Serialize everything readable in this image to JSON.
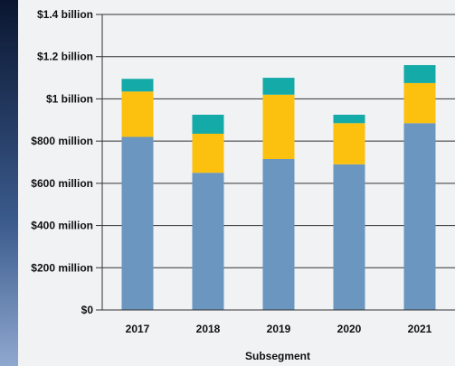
{
  "chart_data": {
    "type": "bar",
    "stacked": true,
    "categories": [
      "2017",
      "2018",
      "2019",
      "2020",
      "2021"
    ],
    "series": [
      {
        "color": "#6a96bf",
        "values": [
          820,
          650,
          715,
          690,
          885
        ]
      },
      {
        "color": "#fcc10f",
        "values": [
          215,
          185,
          305,
          195,
          190
        ]
      },
      {
        "color": "#14aaa8",
        "values": [
          60,
          90,
          80,
          40,
          85
        ]
      }
    ],
    "xlabel": "Subsegment",
    "ylabel": "",
    "ylim": [
      0,
      1400
    ],
    "yticks": [
      {
        "value": 0,
        "label": "$0"
      },
      {
        "value": 200,
        "label": "$200 million"
      },
      {
        "value": 400,
        "label": "$400 million"
      },
      {
        "value": 600,
        "label": "$600 million"
      },
      {
        "value": 800,
        "label": "$800 million"
      },
      {
        "value": 1000,
        "label": "$1 billion"
      },
      {
        "value": 1200,
        "label": "$1.2 billion"
      },
      {
        "value": 1400,
        "label": "$1.4 billion"
      }
    ],
    "grid": true,
    "legend": "none"
  }
}
